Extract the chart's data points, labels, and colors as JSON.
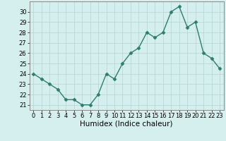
{
  "x": [
    0,
    1,
    2,
    3,
    4,
    5,
    6,
    7,
    8,
    9,
    10,
    11,
    12,
    13,
    14,
    15,
    16,
    17,
    18,
    19,
    20,
    21,
    22,
    23
  ],
  "y": [
    24.0,
    23.5,
    23.0,
    22.5,
    21.5,
    21.5,
    21.0,
    21.0,
    22.0,
    24.0,
    23.5,
    25.0,
    26.0,
    26.5,
    28.0,
    27.5,
    28.0,
    30.0,
    30.5,
    28.5,
    29.0,
    26.0,
    25.5,
    24.5
  ],
  "line_color": "#2d7d6e",
  "marker": "D",
  "marker_size": 2.5,
  "bg_color": "#d5efee",
  "grid_color": "#b8d8d5",
  "xlabel": "Humidex (Indice chaleur)",
  "ylim": [
    20.5,
    31.0
  ],
  "xlim": [
    -0.5,
    23.5
  ],
  "yticks": [
    21,
    22,
    23,
    24,
    25,
    26,
    27,
    28,
    29,
    30
  ],
  "xtick_labels": [
    "0",
    "1",
    "2",
    "3",
    "4",
    "5",
    "6",
    "7",
    "8",
    "9",
    "10",
    "11",
    "12",
    "13",
    "14",
    "15",
    "16",
    "17",
    "18",
    "19",
    "20",
    "21",
    "22",
    "23"
  ],
  "xlabel_fontsize": 7.5,
  "tick_fontsize": 6.0,
  "linewidth": 1.0
}
